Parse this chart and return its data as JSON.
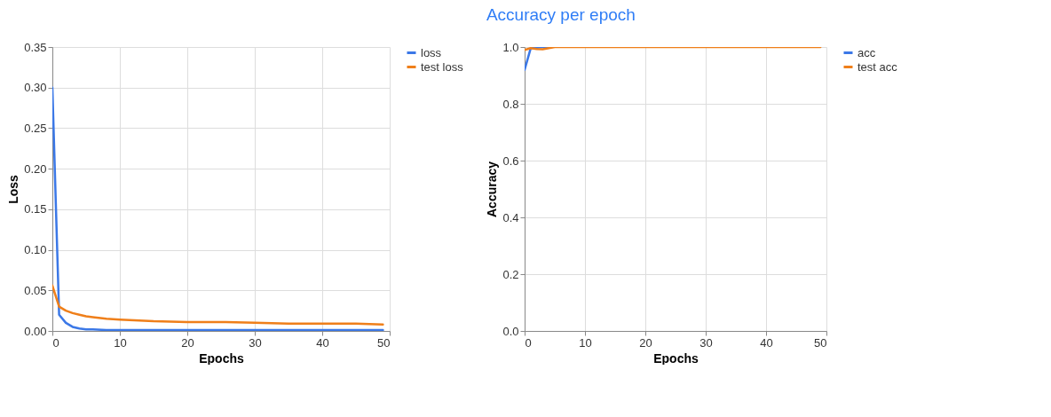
{
  "chart_data": [
    {
      "type": "line",
      "xlabel": "Epochs",
      "ylabel": "Loss",
      "xlim": [
        0,
        50
      ],
      "xticks": [
        0,
        10,
        20,
        30,
        40,
        50
      ],
      "ylim": [
        0,
        0.35
      ],
      "yticks": [
        {
          "value": 0,
          "label": "0.00"
        },
        {
          "value": 0.05,
          "label": "0.05"
        },
        {
          "value": 0.1,
          "label": "0.10"
        },
        {
          "value": 0.15,
          "label": "0.15"
        },
        {
          "value": 0.2,
          "label": "0.20"
        },
        {
          "value": 0.25,
          "label": "0.25"
        },
        {
          "value": 0.3,
          "label": "0.30"
        },
        {
          "value": 0.35,
          "label": "0.35"
        }
      ],
      "x": [
        0,
        1,
        2,
        3,
        4,
        5,
        6,
        8,
        10,
        15,
        20,
        25,
        30,
        35,
        40,
        45,
        49
      ],
      "series": [
        {
          "name": "loss",
          "color": "#3b78e7",
          "values": [
            0.3,
            0.02,
            0.01,
            0.005,
            0.003,
            0.002,
            0.002,
            0.001,
            0.001,
            0.001,
            0.001,
            0.001,
            0.001,
            0.001,
            0.001,
            0.001,
            0.001
          ]
        },
        {
          "name": "test loss",
          "color": "#ef7f1a",
          "values": [
            0.056,
            0.03,
            0.025,
            0.022,
            0.02,
            0.018,
            0.017,
            0.015,
            0.014,
            0.012,
            0.011,
            0.011,
            0.01,
            0.009,
            0.009,
            0.009,
            0.008
          ]
        }
      ],
      "grid": true,
      "legend": "top right",
      "marker": "none",
      "line_style": "solid"
    },
    {
      "type": "line",
      "title": "Accuracy per epoch",
      "xlabel": "Epochs",
      "ylabel": "Accuracy",
      "xlim": [
        0,
        50
      ],
      "xticks": [
        0,
        10,
        20,
        30,
        40,
        50
      ],
      "ylim": [
        0,
        1
      ],
      "yticks": [
        {
          "value": 0,
          "label": "0.0"
        },
        {
          "value": 0.2,
          "label": "0.2"
        },
        {
          "value": 0.4,
          "label": "0.4"
        },
        {
          "value": 0.6,
          "label": "0.6"
        },
        {
          "value": 0.8,
          "label": "0.8"
        },
        {
          "value": 1,
          "label": "1.0"
        }
      ],
      "x": [
        0,
        1,
        2,
        3,
        4,
        5,
        10,
        20,
        30,
        40,
        49
      ],
      "series": [
        {
          "name": "acc",
          "color": "#3b78e7",
          "values": [
            0.92,
            0.995,
            0.998,
            1.0,
            1.0,
            null,
            null,
            null,
            null,
            null,
            null
          ]
        },
        {
          "name": "test acc",
          "color": "#ef7f1a",
          "values": [
            0.99,
            0.996,
            0.993,
            0.992,
            0.996,
            1.0,
            1.0,
            1.0,
            1.0,
            1.0,
            1.0
          ]
        }
      ],
      "grid": true,
      "legend": "top right",
      "marker": "none",
      "line_style": "solid"
    }
  ]
}
